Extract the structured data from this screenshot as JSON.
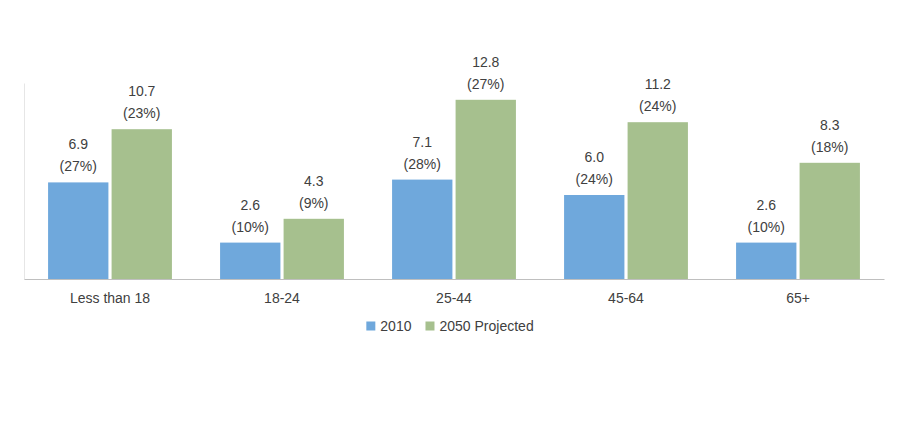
{
  "chart_data": {
    "type": "bar",
    "categories": [
      "Less than 18",
      "18-24",
      "25-44",
      "45-64",
      "65+"
    ],
    "series": [
      {
        "name": "2010",
        "color": "#6fa8dc",
        "values": [
          6.9,
          2.6,
          7.1,
          6.0,
          2.6
        ],
        "value_labels": [
          "6.9",
          "2.6",
          "7.1",
          "6.0",
          "2.6"
        ],
        "share_labels": [
          "(27%)",
          "(10%)",
          "(28%)",
          "(24%)",
          "(10%)"
        ]
      },
      {
        "name": "2050 Projected",
        "color": "#a6c08e",
        "values": [
          10.7,
          4.3,
          12.8,
          11.2,
          8.3
        ],
        "value_labels": [
          "10.7",
          "4.3",
          "12.8",
          "11.2",
          "8.3"
        ],
        "share_labels": [
          "(23%)",
          "(9%)",
          "(27%)",
          "(24%)",
          "(18%)"
        ]
      }
    ],
    "ylim": [
      0,
      14
    ],
    "yticks": [],
    "grid": false,
    "legend": "bottom",
    "data_labels": true,
    "tick_labels": "x"
  }
}
